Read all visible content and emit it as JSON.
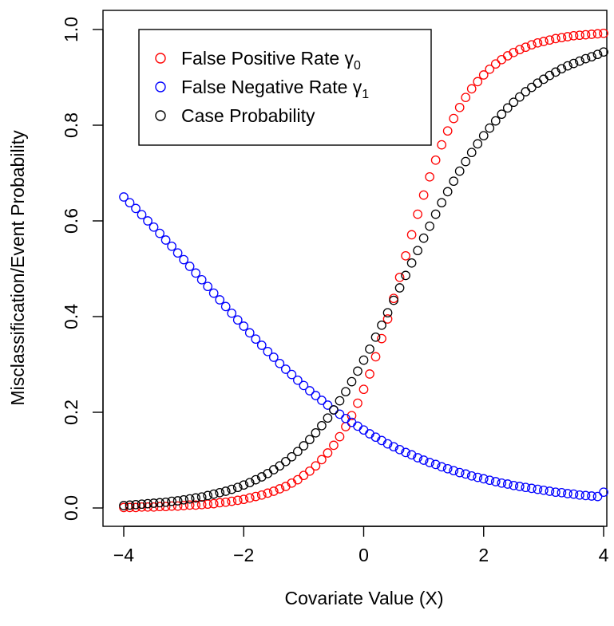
{
  "chart_data": {
    "type": "scatter",
    "title": "",
    "xlabel": "Covariate Value (X)",
    "ylabel": "Misclassification/Event Probability",
    "xlim": [
      -4,
      4
    ],
    "ylim": [
      0,
      1
    ],
    "xticks": [
      {
        "value": -4,
        "label": "−4"
      },
      {
        "value": -2,
        "label": "−2"
      },
      {
        "value": 0,
        "label": "0"
      },
      {
        "value": 2,
        "label": "2"
      },
      {
        "value": 4,
        "label": "4"
      }
    ],
    "yticks": [
      {
        "value": 0,
        "label": "0.0"
      },
      {
        "value": 0.2,
        "label": "0.2"
      },
      {
        "value": 0.4,
        "label": "0.4"
      },
      {
        "value": 0.6,
        "label": "0.6"
      },
      {
        "value": 0.8,
        "label": "0.8"
      },
      {
        "value": 1.0,
        "label": "1.0"
      }
    ],
    "grid": false,
    "legend_position": "top-left",
    "marker": "open-circle",
    "x": [
      -4.0,
      -3.9,
      -3.8,
      -3.7,
      -3.6,
      -3.5,
      -3.4,
      -3.3,
      -3.2,
      -3.1,
      -3.0,
      -2.9,
      -2.8,
      -2.7,
      -2.6,
      -2.5,
      -2.4,
      -2.3,
      -2.2,
      -2.1,
      -2.0,
      -1.9,
      -1.8,
      -1.7,
      -1.6,
      -1.5,
      -1.4,
      -1.3,
      -1.2,
      -1.1,
      -1.0,
      -0.9,
      -0.8,
      -0.7,
      -0.6,
      -0.5,
      -0.4,
      -0.3,
      -0.2,
      -0.1,
      0.0,
      0.1,
      0.2,
      0.3,
      0.4,
      0.5,
      0.6,
      0.7,
      0.8,
      0.9,
      1.0,
      1.1,
      1.2,
      1.3,
      1.4,
      1.5,
      1.6,
      1.7,
      1.8,
      1.9,
      2.0,
      2.1,
      2.2,
      2.3,
      2.4,
      2.5,
      2.6,
      2.7,
      2.8,
      2.9,
      3.0,
      3.1,
      3.2,
      3.3,
      3.4,
      3.5,
      3.6,
      3.7,
      3.8,
      3.9,
      4.0
    ],
    "series": [
      {
        "name": "False Positive Rate γ",
        "name_subscript": "0",
        "color": "#ff0000",
        "values": [
          0.001,
          0.001,
          0.001,
          0.002,
          0.002,
          0.002,
          0.003,
          0.003,
          0.004,
          0.004,
          0.005,
          0.006,
          0.006,
          0.007,
          0.008,
          0.009,
          0.011,
          0.012,
          0.014,
          0.016,
          0.018,
          0.021,
          0.024,
          0.027,
          0.031,
          0.035,
          0.04,
          0.045,
          0.052,
          0.059,
          0.068,
          0.077,
          0.088,
          0.101,
          0.115,
          0.131,
          0.149,
          0.17,
          0.193,
          0.219,
          0.248,
          0.28,
          0.316,
          0.354,
          0.395,
          0.438,
          0.482,
          0.527,
          0.571,
          0.614,
          0.654,
          0.692,
          0.727,
          0.759,
          0.788,
          0.814,
          0.837,
          0.858,
          0.876,
          0.891,
          0.905,
          0.917,
          0.928,
          0.937,
          0.945,
          0.952,
          0.958,
          0.963,
          0.968,
          0.972,
          0.975,
          0.978,
          0.981,
          0.983,
          0.985,
          0.987,
          0.988,
          0.989,
          0.99,
          0.991,
          0.992
        ]
      },
      {
        "name": "False Negative Rate γ",
        "name_subscript": "1",
        "color": "#0000ff",
        "values": [
          0.65,
          0.638,
          0.626,
          0.613,
          0.6,
          0.587,
          0.574,
          0.56,
          0.547,
          0.533,
          0.519,
          0.505,
          0.491,
          0.477,
          0.463,
          0.449,
          0.435,
          0.421,
          0.407,
          0.393,
          0.38,
          0.366,
          0.353,
          0.34,
          0.327,
          0.315,
          0.302,
          0.29,
          0.279,
          0.267,
          0.256,
          0.245,
          0.235,
          0.225,
          0.215,
          0.205,
          0.196,
          0.187,
          0.179,
          0.171,
          0.163,
          0.155,
          0.148,
          0.141,
          0.134,
          0.128,
          0.122,
          0.116,
          0.111,
          0.105,
          0.1,
          0.095,
          0.091,
          0.086,
          0.082,
          0.078,
          0.074,
          0.071,
          0.067,
          0.064,
          0.061,
          0.058,
          0.055,
          0.052,
          0.05,
          0.047,
          0.045,
          0.043,
          0.041,
          0.039,
          0.037,
          0.035,
          0.033,
          0.032,
          0.03,
          0.029,
          0.027,
          0.026,
          0.025,
          0.024,
          0.033
        ]
      },
      {
        "name": "Case Probability",
        "color": "#000000",
        "values": [
          0.005,
          0.006,
          0.007,
          0.008,
          0.009,
          0.01,
          0.011,
          0.012,
          0.014,
          0.015,
          0.017,
          0.019,
          0.021,
          0.023,
          0.026,
          0.029,
          0.032,
          0.035,
          0.039,
          0.043,
          0.048,
          0.053,
          0.059,
          0.065,
          0.072,
          0.08,
          0.088,
          0.097,
          0.107,
          0.118,
          0.13,
          0.143,
          0.157,
          0.172,
          0.188,
          0.205,
          0.224,
          0.243,
          0.264,
          0.286,
          0.309,
          0.332,
          0.357,
          0.382,
          0.408,
          0.434,
          0.46,
          0.486,
          0.512,
          0.538,
          0.564,
          0.589,
          0.614,
          0.638,
          0.661,
          0.683,
          0.704,
          0.724,
          0.743,
          0.761,
          0.778,
          0.794,
          0.809,
          0.823,
          0.836,
          0.848,
          0.859,
          0.87,
          0.879,
          0.888,
          0.896,
          0.904,
          0.911,
          0.918,
          0.924,
          0.929,
          0.934,
          0.939,
          0.943,
          0.948,
          0.953
        ]
      }
    ]
  }
}
